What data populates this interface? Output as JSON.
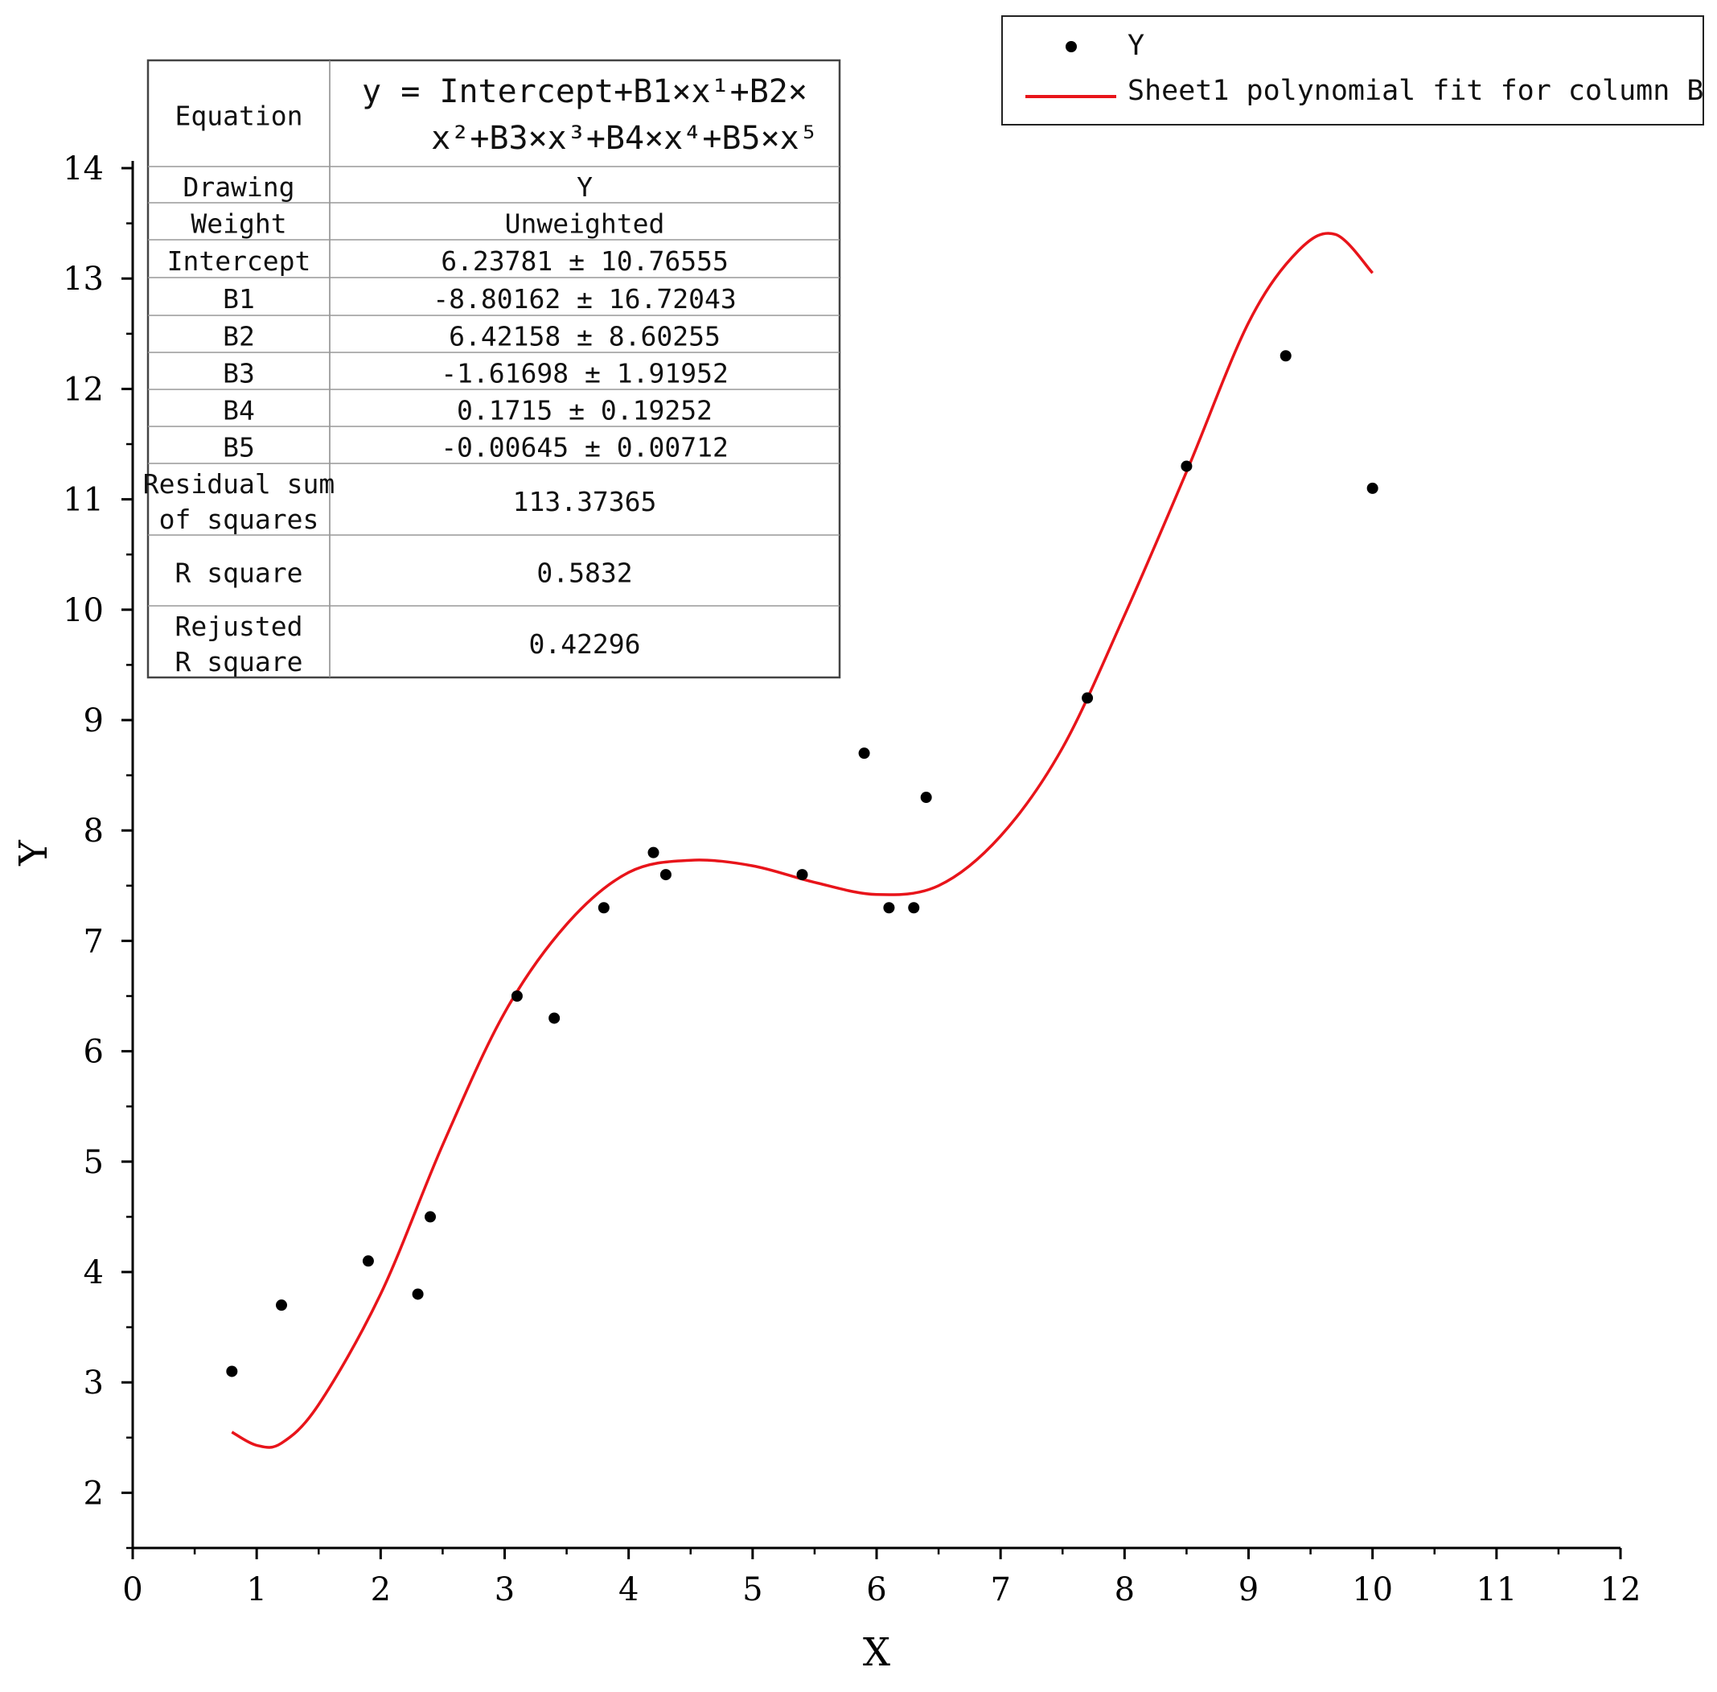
{
  "chart_data": {
    "type": "scatter",
    "xlabel": "X",
    "ylabel": "Y",
    "xlim": [
      0,
      12
    ],
    "ylim": [
      1.5,
      14
    ],
    "x_ticks": [
      0,
      1,
      2,
      3,
      4,
      5,
      6,
      7,
      8,
      9,
      10,
      11,
      12
    ],
    "y_ticks": [
      2,
      3,
      4,
      5,
      6,
      7,
      8,
      9,
      10,
      11,
      12,
      13,
      14
    ],
    "grid": false,
    "legend_position": "top-right",
    "series": [
      {
        "name": "Y",
        "type": "scatter",
        "color": "#000000",
        "x": [
          0.8,
          1.2,
          1.9,
          2.3,
          2.4,
          3.1,
          3.4,
          3.8,
          4.2,
          4.3,
          5.4,
          5.9,
          6.1,
          6.3,
          6.4,
          7.7,
          8.5,
          9.3,
          10.0
        ],
        "y": [
          3.1,
          3.7,
          4.1,
          3.8,
          4.5,
          6.5,
          6.3,
          7.3,
          7.8,
          7.6,
          7.6,
          8.7,
          7.3,
          7.3,
          8.3,
          9.2,
          11.3,
          12.3,
          11.1
        ]
      },
      {
        "name": "Sheet1 polynomial fit for column B",
        "type": "line",
        "color": "#e8141a",
        "x": [
          0.8,
          1.0,
          1.2,
          1.5,
          2.0,
          2.5,
          3.0,
          3.5,
          4.0,
          4.5,
          5.0,
          5.5,
          6.0,
          6.5,
          7.0,
          7.5,
          8.0,
          8.5,
          9.0,
          9.4,
          9.7,
          10.0
        ],
        "y": [
          2.55,
          2.43,
          2.45,
          2.8,
          3.8,
          5.15,
          6.35,
          7.15,
          7.62,
          7.73,
          7.68,
          7.53,
          7.42,
          7.5,
          7.95,
          8.75,
          9.95,
          11.25,
          12.6,
          13.25,
          13.4,
          13.05
        ]
      }
    ],
    "fit_table": {
      "rows": [
        {
          "label": "Equation",
          "value": [
            "y = Intercept+B1×x¹+B2×",
            "x²+B3×x³+B4×x⁴+B5×x⁵"
          ]
        },
        {
          "label": "Drawing",
          "value": "Y"
        },
        {
          "label": "Weight",
          "value": "Unweighted"
        },
        {
          "label": "Intercept",
          "value": "6.23781 ± 10.76555"
        },
        {
          "label": "B1",
          "value": "-8.80162 ± 16.72043"
        },
        {
          "label": "B2",
          "value": "6.42158 ± 8.60255"
        },
        {
          "label": "B3",
          "value": "-1.61698 ± 1.91952"
        },
        {
          "label": "B4",
          "value": "0.1715 ± 0.19252"
        },
        {
          "label": "B5",
          "value": "-0.00645 ± 0.00712"
        },
        {
          "label": [
            "Residual sum",
            "of squares"
          ],
          "value": "113.37365"
        },
        {
          "label": "R square",
          "value": "0.5832"
        },
        {
          "label": [
            "Rejusted",
            "R square"
          ],
          "value": "0.42296"
        }
      ]
    }
  }
}
